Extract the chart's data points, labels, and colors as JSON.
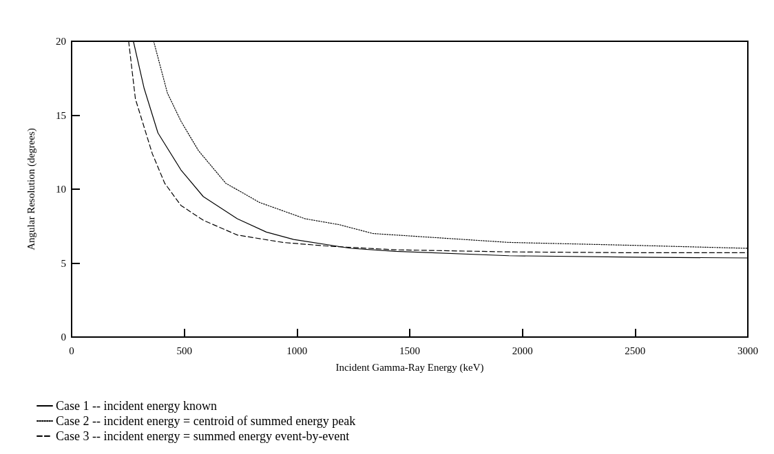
{
  "chart_data": {
    "type": "line",
    "xlabel": "Incident Gamma-Ray Energy (keV)",
    "ylabel": "Angular Resolution (degrees)",
    "xlim": [
      0,
      3000
    ],
    "xticks": [
      0,
      500,
      1000,
      1500,
      2000,
      2500,
      3000
    ],
    "ylim": [
      0,
      20
    ],
    "yticks": [
      0,
      5,
      10,
      15,
      20
    ],
    "grid": false,
    "legend": "bottom left",
    "marker": "none",
    "series": [
      {
        "name": "Case 1 -- incident energy known",
        "color": "#000000",
        "line_style": "solid",
        "x": [
          274,
          322,
          383,
          485,
          584,
          735,
          864,
          985,
          1238,
          1437,
          1940,
          2500,
          3000
        ],
        "values": [
          20,
          16.8,
          13.8,
          11.3,
          9.5,
          8.0,
          7.1,
          6.6,
          6.0,
          5.8,
          5.5,
          5.4,
          5.35
        ]
      },
      {
        "name": "Case 2 -- incident energy = centroid of summed energy peak",
        "color": "#000000",
        "line_style": "dotted",
        "x": [
          364,
          425,
          485,
          563,
          684,
          834,
          1036,
          1187,
          1337,
          1639,
          1940,
          2500,
          3000
        ],
        "values": [
          20,
          16.5,
          14.6,
          12.6,
          10.4,
          9.1,
          8.0,
          7.6,
          7.0,
          6.7,
          6.4,
          6.2,
          6.0
        ]
      },
      {
        "name": "Case 3 -- incident energy = summed energy event-by-event",
        "color": "#000000",
        "line_style": "dashed",
        "x": [
          253,
          283,
          358,
          413,
          485,
          584,
          735,
          937,
          1136,
          1437,
          1940,
          2500,
          3000
        ],
        "values": [
          20,
          16.1,
          12.4,
          10.4,
          8.9,
          7.9,
          6.9,
          6.4,
          6.15,
          5.9,
          5.76,
          5.7,
          5.7
        ]
      }
    ]
  }
}
